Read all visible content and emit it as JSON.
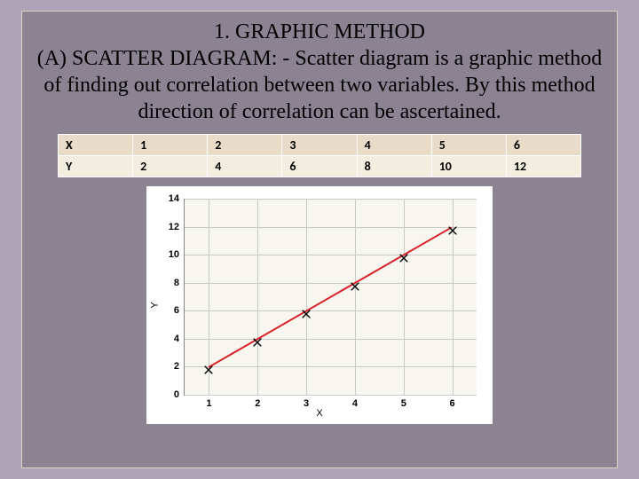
{
  "title_line1": "1. GRAPHIC  METHOD",
  "title_line2": "(A) SCATTER DIAGRAM: - Scatter diagram is a graphic method of finding out correlation between two variables. By this method  direction of correlation can be ascertained.",
  "table": {
    "row_labels": [
      "X",
      "Y"
    ],
    "x": [
      "1",
      "2",
      "3",
      "4",
      "5",
      "6"
    ],
    "y": [
      "2",
      "4",
      "6",
      "8",
      "10",
      "12"
    ]
  },
  "chart": {
    "type": "scatter",
    "x_values": [
      1,
      2,
      3,
      4,
      5,
      6
    ],
    "y_values": [
      2,
      4,
      6,
      8,
      10,
      12
    ],
    "xlim": [
      0.5,
      6.5
    ],
    "ylim": [
      0,
      14
    ],
    "ytick_step": 2,
    "xticks": [
      1,
      2,
      3,
      4,
      5,
      6
    ],
    "xlabel": "X",
    "ylabel": "Y",
    "plot_bg": "#f7f6ef",
    "grid_color": "#c9c9c9",
    "marker_color": "#000000",
    "line_color": "#d8232a",
    "line_width": 2,
    "font_family": "Arial",
    "tick_fontsize": 11,
    "background_color": "#ffffff"
  },
  "colors": {
    "slide_bg": "#8b8392",
    "outer_bg": "#afa3b7",
    "table_header_bg": "#e8dcc8",
    "table_row_bg": "#f3ede0"
  }
}
